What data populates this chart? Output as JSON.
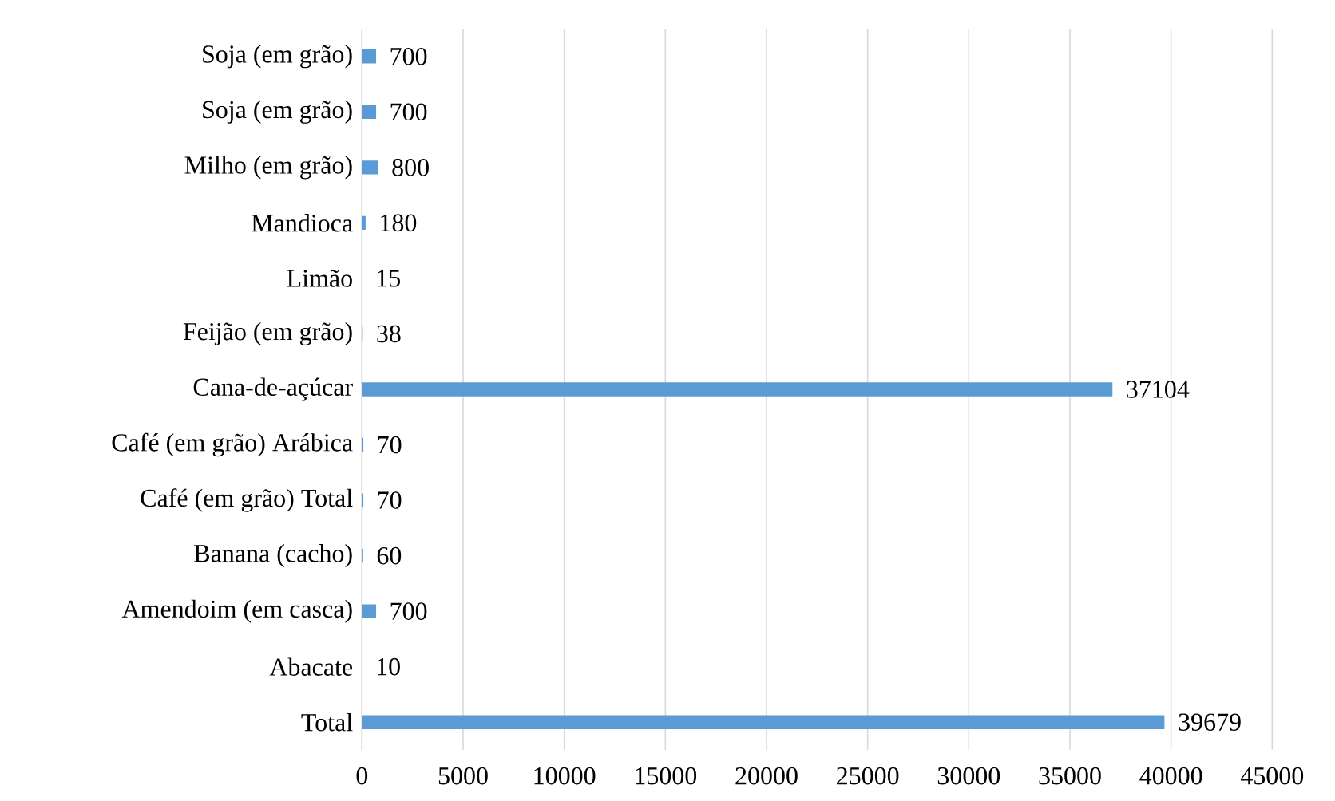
{
  "chart_data": {
    "type": "bar",
    "orientation": "horizontal",
    "categories": [
      "Soja (em grão)",
      "Soja (em grão)",
      "Milho (em grão)",
      "Mandioca",
      "Limão",
      "Feijão (em grão)",
      "Cana-de-açúcar",
      "Café (em grão) Arábica",
      "Café (em grão) Total",
      "Banana (cacho)",
      "Amendoim (em casca)",
      "Abacate",
      "Total"
    ],
    "values": [
      700,
      700,
      800,
      180,
      15,
      38,
      37104,
      70,
      70,
      60,
      700,
      10,
      39679
    ],
    "color": "#5b9bd5",
    "xlim": [
      0,
      45000
    ],
    "xticks": [
      0,
      5000,
      10000,
      15000,
      20000,
      25000,
      30000,
      35000,
      40000,
      45000
    ],
    "grid": "x",
    "data_labels": true
  }
}
